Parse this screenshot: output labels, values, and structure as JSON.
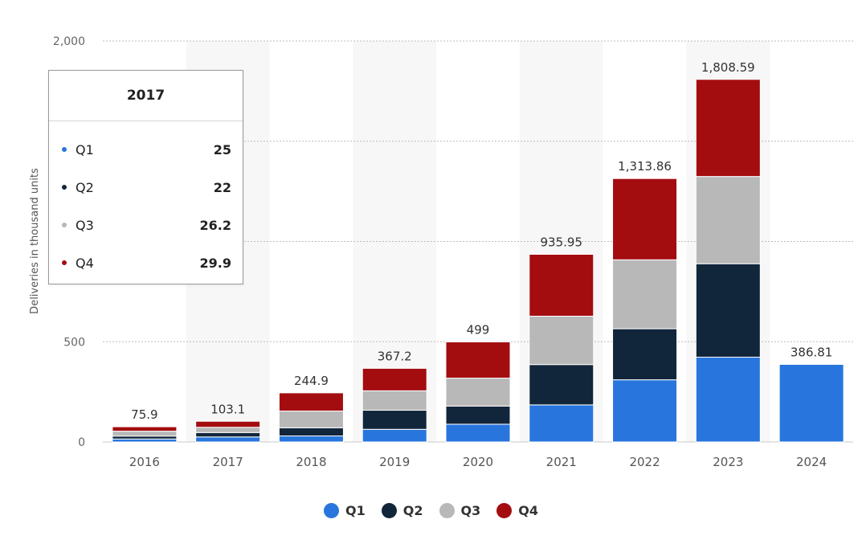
{
  "chart_data": {
    "type": "bar",
    "stacked": true,
    "categories": [
      "2016",
      "2017",
      "2018",
      "2019",
      "2020",
      "2021",
      "2022",
      "2023",
      "2024"
    ],
    "series": [
      {
        "name": "Q1",
        "color": "#2876dd",
        "values": [
          14.8,
          25,
          29.98,
          63,
          88.4,
          184.8,
          310.05,
          422.875,
          386.81
        ]
      },
      {
        "name": "Q2",
        "color": "#12263b",
        "values": [
          14.37,
          22,
          40.74,
          95.2,
          90.65,
          201.25,
          254.695,
          466.14,
          null
        ]
      },
      {
        "name": "Q3",
        "color": "#b8b8b8",
        "values": [
          24.5,
          26.2,
          83.5,
          97,
          139.3,
          241.3,
          343.83,
          435.059,
          null
        ]
      },
      {
        "name": "Q4",
        "color": "#a30d10",
        "values": [
          22.2,
          29.9,
          90.7,
          112,
          180.57,
          308.6,
          405.278,
          484.507,
          null
        ]
      }
    ],
    "totals": [
      "75.9",
      "103.1",
      "244.9",
      "367.2",
      "499",
      "935.95",
      "1,313.86",
      "1,808.59",
      "386.81"
    ],
    "y_ticks": [
      "0",
      "500",
      "",
      "",
      "2,000"
    ],
    "y_tick_values": [
      0,
      500,
      1000,
      1500,
      2000
    ],
    "ylabel": "Deliveries in thousand units",
    "ylim": [
      0,
      2000
    ],
    "grid": true,
    "legend_position": "bottom-center",
    "highlighted_category": "2017"
  },
  "tooltip": {
    "title": "2017",
    "rows": [
      {
        "name": "Q1",
        "value": "25"
      },
      {
        "name": "Q2",
        "value": "22"
      },
      {
        "name": "Q3",
        "value": "26.2"
      },
      {
        "name": "Q4",
        "value": "29.9"
      }
    ]
  },
  "legend": [
    {
      "name": "Q1"
    },
    {
      "name": "Q2"
    },
    {
      "name": "Q3"
    },
    {
      "name": "Q4"
    }
  ]
}
